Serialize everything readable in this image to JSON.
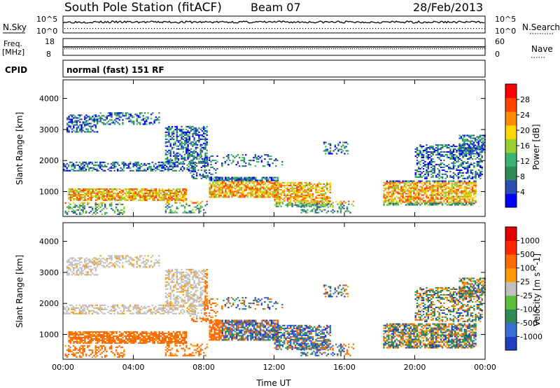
{
  "header": {
    "station": "South Pole Station (fitACF)",
    "beam": "Beam 07",
    "date": "28/Feb/2013"
  },
  "status_panels": {
    "nsky_label": "N.Sky",
    "nsearch_label": "N.Search",
    "noise_top": "10^5",
    "noise_bottom": "10^0",
    "freq_label_line1": "Freq.",
    "freq_label_line2": "[MHz]",
    "freq_top": "18",
    "freq_bottom": "8",
    "nave_top": "60",
    "nave_bottom": "0",
    "nave_label": "Nave",
    "cpid_label": "CPID",
    "cpid_value": "normal (fast) 151 RF"
  },
  "chart_data": [
    {
      "type": "heatmap",
      "title": "Power",
      "ylabel": "Slant Range [km]",
      "xlabel": "",
      "x_ticks": [
        "00:00",
        "04:00",
        "08:00",
        "12:00",
        "16:00",
        "20:00",
        "00:00"
      ],
      "y_ticks": [
        1000,
        2000,
        3000,
        4000
      ],
      "ylim": [
        200,
        4600
      ],
      "colorbar": {
        "label": "Power [dB]",
        "ticks": [
          "4",
          "8",
          "12",
          "16",
          "20",
          "24",
          "28"
        ],
        "colors": [
          "#0000ff",
          "#2a4fb0",
          "#2e8b57",
          "#3cb371",
          "#9acd32",
          "#ffd700",
          "#ff8c00",
          "#ff4500",
          "#ff0000"
        ]
      }
    },
    {
      "type": "heatmap",
      "title": "Velocity",
      "ylabel": "Slant Range [km]",
      "xlabel": "Time UT",
      "x_ticks": [
        "00:00",
        "04:00",
        "08:00",
        "12:00",
        "16:00",
        "20:00",
        "00:00"
      ],
      "y_ticks": [
        1000,
        2000,
        3000,
        4000
      ],
      "ylim": [
        200,
        4600
      ],
      "colorbar": {
        "label": "Velocity [m s^-1]",
        "ticks": [
          "1000",
          "500",
          "100",
          "25",
          "-25",
          "-100",
          "-500",
          "-1000"
        ],
        "colors": [
          "#1f3fbf",
          "#3a6fd8",
          "#2e8b57",
          "#5cbf3c",
          "#c0c0c0",
          "#ff9900",
          "#ff6a00",
          "#ff2a00",
          "#e00000"
        ]
      }
    }
  ]
}
